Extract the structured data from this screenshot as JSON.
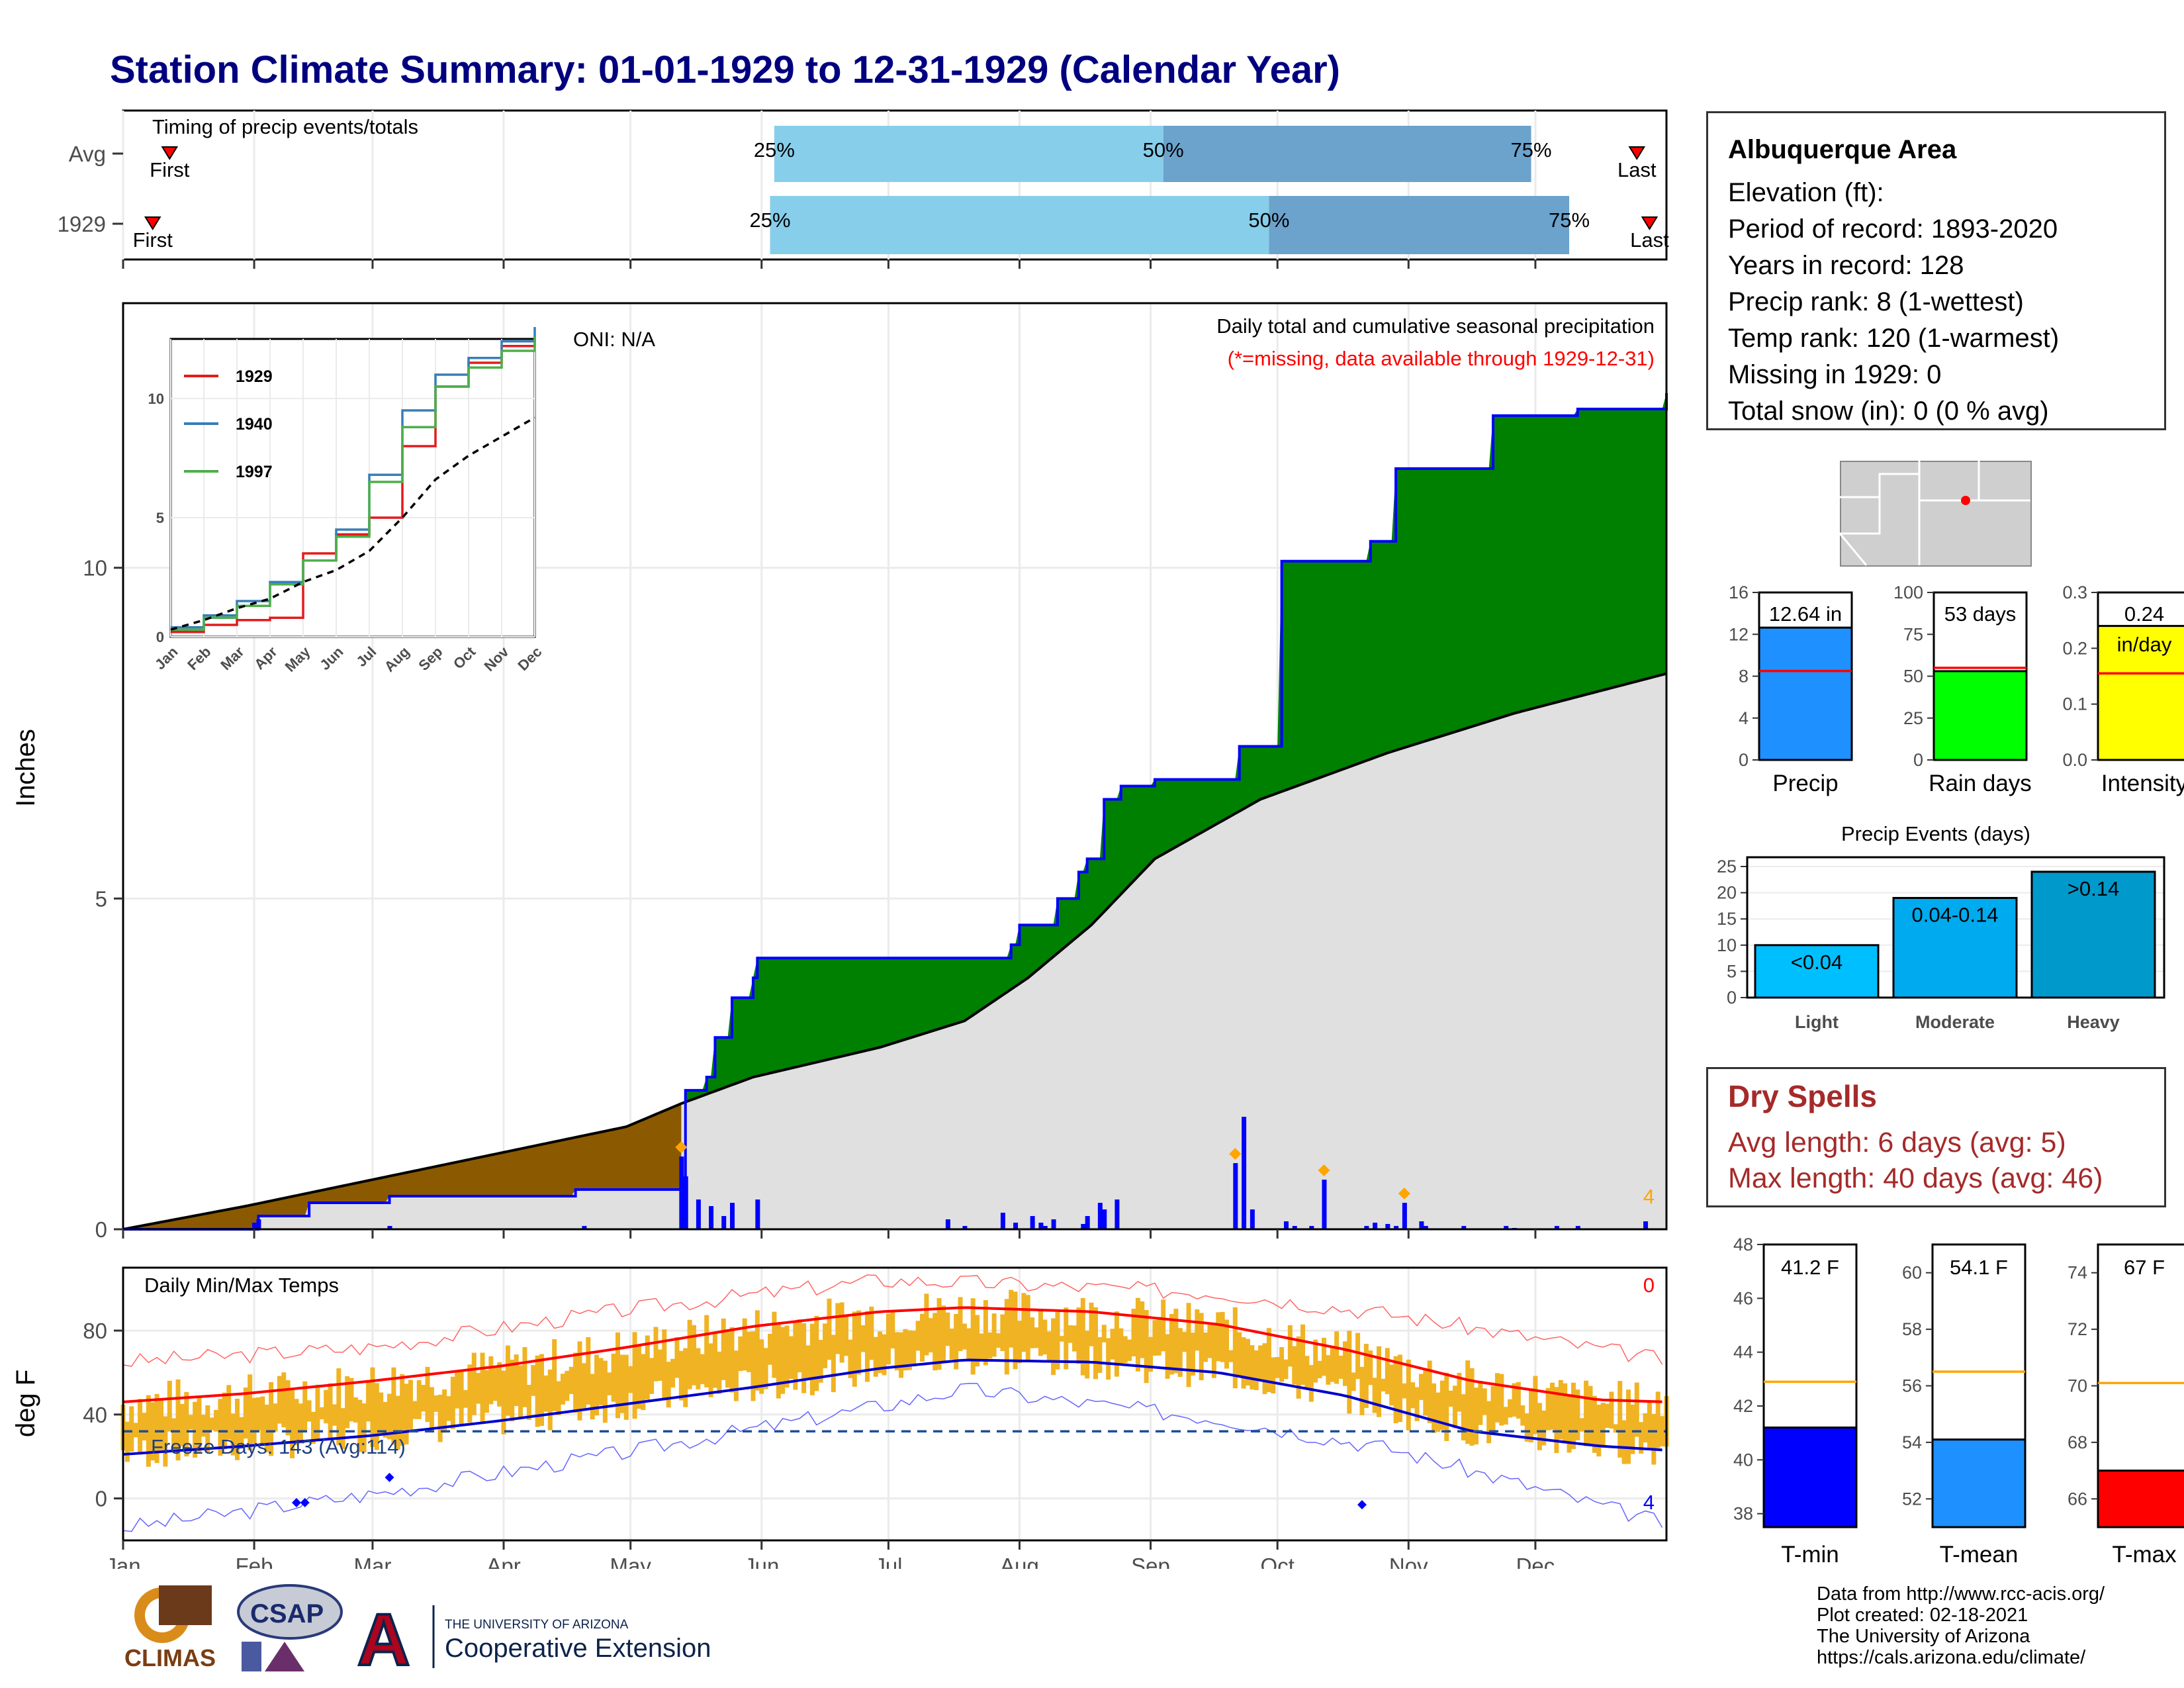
{
  "header": {
    "title": "Station Climate Summary: 01-01-1929 to 12-31-1929 (Calendar Year)"
  },
  "timing_panel": {
    "title": "Timing of precip events/totals",
    "rows": [
      {
        "label": "Avg",
        "first": "First",
        "last": "Last",
        "p25": "25%",
        "p50": "50%",
        "p75": "75%",
        "first_day": 12,
        "p25_day": 155,
        "p50_day": 247,
        "p75_day": 334,
        "last_day": 359
      },
      {
        "label": "1929",
        "first": "First",
        "last": "Last",
        "p25": "25%",
        "p50": "50%",
        "p75": "75%",
        "first_day": 8,
        "p25_day": 154,
        "p50_day": 272,
        "p75_day": 343,
        "last_day": 362
      }
    ]
  },
  "precip_panel": {
    "oni": "ONI: N/A",
    "title": "Daily total and cumulative seasonal precipitation",
    "subtitle": "(*=missing, data available through 1929-12-31)",
    "ylabel": "Inches",
    "count_label": "4",
    "colors": {
      "surplus": "#008000",
      "deficit": "#8b5a00",
      "normal": "#e0e0e0",
      "cumulative_line": "#0000ff",
      "daily": "#0000ff"
    }
  },
  "inset": {
    "legend": [
      {
        "name": "1929",
        "color": "#e41a1c"
      },
      {
        "name": "1940",
        "color": "#377eb8"
      },
      {
        "name": "1997",
        "color": "#4daf4a"
      }
    ],
    "y_ticks": [
      "0",
      "5",
      "10"
    ],
    "months": [
      "Jan",
      "Feb",
      "Mar",
      "Apr",
      "May",
      "Jun",
      "Jul",
      "Aug",
      "Sep",
      "Oct",
      "Nov",
      "Dec"
    ]
  },
  "temp_panel": {
    "title": "Daily Min/Max Temps",
    "ylabel": "deg F",
    "freeze_label": "Freeze Days: 143 (Avg:114)",
    "count_hot": "0",
    "count_cold": "4",
    "y_ticks": [
      "0",
      "40",
      "80"
    ]
  },
  "months": [
    "Jan",
    "Feb",
    "Mar",
    "Apr",
    "May",
    "Jun",
    "Jul",
    "Aug",
    "Sep",
    "Oct",
    "Nov",
    "Dec"
  ],
  "info": {
    "location": "Albuquerque Area",
    "lines": [
      "Elevation (ft):",
      "Period of record: 1893-2020",
      "Years in record: 128",
      "Precip rank: 8 (1-wettest)",
      "Temp rank: 120 (1-warmest)",
      "Missing in 1929: 0",
      "Total snow (in): 0 (0 % avg)"
    ]
  },
  "mini_bars": [
    {
      "label": "Precip",
      "value_label": "12.64 in",
      "value": 12.64,
      "avg": 8.5,
      "ymax": 16,
      "ticks": [
        "0",
        "4",
        "8",
        "12",
        "16"
      ],
      "color": "#1e90ff"
    },
    {
      "label": "Rain days",
      "value_label": "53 days",
      "value": 53,
      "avg": 55,
      "ymax": 100,
      "ticks": [
        "0",
        "25",
        "50",
        "75",
        "100"
      ],
      "color": "#00ff00"
    },
    {
      "label": "Intensity",
      "value_label": "0.24",
      "value_label2": "in/day",
      "value": 0.24,
      "avg": 0.155,
      "ymax": 0.3,
      "ticks": [
        "0.0",
        "0.1",
        "0.2",
        "0.3"
      ],
      "color": "#ffff00"
    }
  ],
  "precip_events": {
    "title": "Precip Events (days)",
    "ticks": [
      "0",
      "5",
      "10",
      "15",
      "20",
      "25"
    ],
    "bars": [
      {
        "category": "Light",
        "label": "<0.04",
        "value": 10,
        "color": "#00bfff"
      },
      {
        "category": "Moderate",
        "label": "0.04-0.14",
        "value": 19,
        "color": "#00aaee"
      },
      {
        "category": "Heavy",
        "label": ">0.14",
        "value": 24,
        "color": "#0099cc"
      }
    ]
  },
  "dry_spells": {
    "title": "Dry Spells",
    "avg_length": "Avg length: 6 days (avg: 5)",
    "max_length": "Max length: 40 days (avg: 46)"
  },
  "temp_bars": [
    {
      "label": "T-min",
      "value_label": "41.2 F",
      "value": 41.2,
      "avg": 42.9,
      "ymin": 37.5,
      "ymax": 48,
      "ticks": [
        "38",
        "40",
        "42",
        "44",
        "46",
        "48"
      ],
      "color": "#0000ff"
    },
    {
      "label": "T-mean",
      "value_label": "54.1 F",
      "value": 54.1,
      "avg": 56.5,
      "ymin": 51,
      "ymax": 61,
      "ticks": [
        "52",
        "54",
        "56",
        "58",
        "60"
      ],
      "color": "#1e90ff"
    },
    {
      "label": "T-max",
      "value_label": "67 F",
      "value": 67,
      "avg": 70.1,
      "ymin": 65,
      "ymax": 75,
      "ticks": [
        "66",
        "68",
        "70",
        "72",
        "74"
      ],
      "color": "#ff0000"
    }
  ],
  "credits": [
    "Data from http://www.rcc-acis.org/",
    "Plot created: 02-18-2021",
    "The University of Arizona",
    "https://cals.arizona.edu/climate/"
  ],
  "logos": {
    "climas": "CLIMAS",
    "csap": "CSAP",
    "ua_small": "THE UNIVERSITY OF ARIZONA",
    "ua_big": "Cooperative Extension",
    "ua_letter": "A"
  },
  "chart_data": [
    {
      "type": "line",
      "title": "Daily total and cumulative seasonal precipitation",
      "ylabel": "Inches",
      "ylim": [
        0,
        14
      ],
      "x_unit": "day of year",
      "series": [
        {
          "name": "Cumulative precip 1929",
          "x": [
            1,
            33,
            45,
            64,
            108,
            133,
            134,
            139,
            141,
            145,
            150,
            151,
            209,
            211,
            213,
            222,
            227,
            229,
            233,
            237,
            245,
            262,
            265,
            275,
            296,
            302,
            325,
            345,
            366
          ],
          "y": [
            0,
            0.2,
            0.4,
            0.5,
            0.6,
            0.6,
            2.1,
            2.3,
            2.9,
            3.5,
            3.8,
            4.1,
            4.1,
            4.3,
            4.6,
            5.0,
            5.4,
            5.6,
            6.5,
            6.7,
            6.8,
            6.8,
            7.3,
            10.1,
            10.4,
            11.5,
            12.3,
            12.4,
            12.64
          ]
        },
        {
          "name": "Average cumulative",
          "x": [
            1,
            30,
            60,
            90,
            120,
            133,
            150,
            180,
            200,
            215,
            230,
            245,
            270,
            300,
            330,
            366
          ],
          "y": [
            0,
            0.35,
            0.75,
            1.15,
            1.55,
            1.9,
            2.3,
            2.75,
            3.15,
            3.8,
            4.6,
            5.6,
            6.5,
            7.2,
            7.8,
            8.4
          ]
        },
        {
          "name": "Daily precip",
          "x": [
            32,
            33,
            64,
            110,
            133,
            134,
            137,
            140,
            143,
            145,
            151,
            196,
            200,
            209,
            212,
            216,
            218,
            219,
            221,
            228,
            229,
            232,
            233,
            236,
            264,
            266,
            268,
            276,
            278,
            282,
            285,
            295,
            297,
            300,
            302,
            304,
            308,
            309,
            318,
            328,
            330,
            340,
            345,
            361
          ],
          "y": [
            0.1,
            0.15,
            0.05,
            0.05,
            1.1,
            0.8,
            0.45,
            0.35,
            0.2,
            0.4,
            0.45,
            0.15,
            0.05,
            0.25,
            0.1,
            0.2,
            0.1,
            0.05,
            0.15,
            0.08,
            0.2,
            0.4,
            0.3,
            0.45,
            1.0,
            1.7,
            0.3,
            0.12,
            0.05,
            0.05,
            0.75,
            0.05,
            0.1,
            0.08,
            0.05,
            0.4,
            0.12,
            0.05,
            0.05,
            0.05,
            0.02,
            0.05,
            0.05,
            0.12
          ]
        }
      ]
    },
    {
      "type": "line",
      "title": "",
      "categories": [
        "Jan",
        "Feb",
        "Mar",
        "Apr",
        "May",
        "Jun",
        "Jul",
        "Aug",
        "Sep",
        "Oct",
        "Nov",
        "Dec"
      ],
      "ylim": [
        0,
        12.5
      ],
      "series": [
        {
          "name": "1929",
          "values": [
            0.2,
            0.5,
            0.7,
            0.8,
            3.5,
            4.3,
            5.0,
            8.0,
            10.5,
            11.5,
            12.2,
            12.6
          ]
        },
        {
          "name": "1940",
          "values": [
            0.4,
            0.9,
            1.5,
            2.3,
            3.2,
            4.5,
            6.8,
            9.5,
            11.0,
            11.7,
            12.4,
            13.0
          ]
        },
        {
          "name": "1997",
          "values": [
            0.3,
            0.8,
            1.3,
            2.2,
            3.2,
            4.2,
            6.5,
            8.8,
            10.5,
            11.3,
            12.0,
            12.6
          ]
        },
        {
          "name": "Average",
          "values": [
            0.3,
            0.7,
            1.2,
            1.6,
            2.3,
            2.8,
            3.6,
            5.0,
            6.6,
            7.6,
            8.4,
            9.2
          ]
        }
      ]
    },
    {
      "type": "line",
      "title": "Daily Min/Max Temps",
      "ylabel": "deg F",
      "ylim": [
        -20,
        110
      ],
      "x_unit": "day of year",
      "series": [
        {
          "name": "Average max",
          "x": [
            1,
            30,
            60,
            90,
            120,
            150,
            180,
            200,
            230,
            260,
            290,
            320,
            350,
            366
          ],
          "y": [
            46,
            50,
            56,
            63,
            72,
            82,
            89,
            91,
            89,
            83,
            71,
            56,
            47,
            46
          ]
        },
        {
          "name": "Average min",
          "x": [
            1,
            30,
            60,
            90,
            120,
            150,
            180,
            200,
            230,
            260,
            290,
            320,
            350,
            366
          ],
          "y": [
            21,
            25,
            30,
            37,
            45,
            53,
            62,
            66,
            65,
            60,
            49,
            32,
            25,
            23
          ]
        },
        {
          "name": "Record max",
          "x": [
            1,
            60,
            120,
            180,
            200,
            260,
            300,
            366
          ],
          "y": [
            65,
            72,
            90,
            104,
            103,
            98,
            88,
            66
          ]
        },
        {
          "name": "Record min",
          "x": [
            1,
            60,
            120,
            180,
            200,
            260,
            300,
            366
          ],
          "y": [
            -14,
            2,
            22,
            44,
            52,
            38,
            24,
            -12
          ]
        }
      ]
    },
    {
      "type": "bar",
      "categories": [
        "Precip",
        "Rain days",
        "Intensity"
      ],
      "values": [
        12.64,
        53,
        0.24
      ]
    },
    {
      "type": "bar",
      "title": "Precip Events (days)",
      "categories": [
        "Light",
        "Moderate",
        "Heavy"
      ],
      "values": [
        10,
        19,
        24
      ],
      "ylim": [
        0,
        25
      ]
    },
    {
      "type": "bar",
      "categories": [
        "T-min",
        "T-mean",
        "T-max"
      ],
      "values": [
        41.2,
        54.1,
        67
      ]
    }
  ]
}
